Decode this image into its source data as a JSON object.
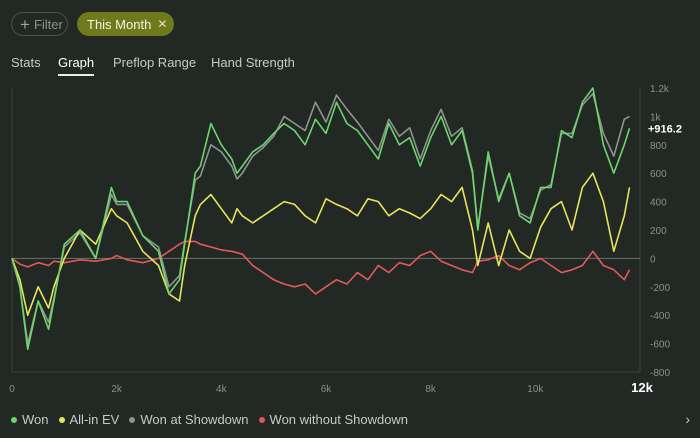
{
  "filters": {
    "filter_label": "Filter",
    "this_month_label": "This Month",
    "plus_icon": "plus-icon",
    "close_icon": "close-icon"
  },
  "tabs": [
    {
      "label": "Stats",
      "active": false
    },
    {
      "label": "Graph",
      "active": true
    },
    {
      "label": "Preflop Range",
      "active": false
    },
    {
      "label": "Hand Strength",
      "active": false
    }
  ],
  "chart_data": {
    "type": "line",
    "x_ticks": [
      "0",
      "2k",
      "4k",
      "6k",
      "8k",
      "10k",
      "12k"
    ],
    "y_ticks": [
      "-800",
      "-600",
      "-400",
      "-200",
      "0",
      "200",
      "400",
      "600",
      "800",
      "1k",
      "1.2k"
    ],
    "xlim": [
      0,
      12000
    ],
    "ylim": [
      -800,
      1200
    ],
    "end_label": "+916.2",
    "series": [
      {
        "name": "Won",
        "color": "#6bd66b",
        "x": [
          0,
          150,
          300,
          500,
          700,
          800,
          1000,
          1300,
          1600,
          1900,
          2000,
          2200,
          2500,
          2800,
          3000,
          3200,
          3300,
          3500,
          3600,
          3800,
          4000,
          4200,
          4300,
          4400,
          4600,
          4800,
          5000,
          5200,
          5400,
          5600,
          5800,
          6000,
          6200,
          6400,
          6600,
          6800,
          7000,
          7200,
          7400,
          7600,
          7800,
          8000,
          8200,
          8400,
          8600,
          8800,
          8900,
          9100,
          9300,
          9500,
          9700,
          9900,
          10100,
          10300,
          10500,
          10700,
          10900,
          11100,
          11300,
          11500,
          11700,
          11800
        ],
        "y": [
          0,
          -200,
          -640,
          -300,
          -500,
          -300,
          100,
          200,
          0,
          500,
          400,
          400,
          160,
          50,
          -250,
          -150,
          100,
          600,
          650,
          950,
          800,
          700,
          600,
          650,
          750,
          800,
          880,
          950,
          900,
          800,
          980,
          880,
          1100,
          950,
          900,
          800,
          700,
          950,
          800,
          850,
          650,
          850,
          1000,
          800,
          900,
          600,
          200,
          750,
          400,
          600,
          300,
          250,
          500,
          500,
          900,
          850,
          1100,
          1200,
          800,
          600,
          800,
          916
        ]
      },
      {
        "name": "All-in EV",
        "color": "#e8e35c",
        "x": [
          0,
          150,
          300,
          500,
          700,
          800,
          1000,
          1300,
          1600,
          1900,
          2000,
          2200,
          2500,
          2800,
          3000,
          3200,
          3300,
          3500,
          3600,
          3800,
          4000,
          4200,
          4300,
          4400,
          4600,
          4800,
          5000,
          5200,
          5400,
          5600,
          5800,
          6000,
          6200,
          6400,
          6600,
          6800,
          7000,
          7200,
          7400,
          7600,
          7800,
          8000,
          8200,
          8400,
          8600,
          8800,
          8900,
          9100,
          9300,
          9500,
          9700,
          9900,
          10100,
          10300,
          10500,
          10700,
          10900,
          11100,
          11300,
          11500,
          11700,
          11800
        ],
        "y": [
          0,
          -150,
          -400,
          -200,
          -350,
          -200,
          0,
          200,
          100,
          350,
          300,
          250,
          50,
          -50,
          -250,
          -300,
          -50,
          300,
          380,
          450,
          350,
          250,
          350,
          300,
          250,
          300,
          350,
          400,
          380,
          300,
          250,
          420,
          380,
          350,
          300,
          420,
          400,
          300,
          350,
          320,
          280,
          350,
          450,
          400,
          500,
          200,
          -50,
          250,
          -50,
          200,
          50,
          0,
          220,
          350,
          400,
          200,
          500,
          600,
          400,
          50,
          300,
          500
        ]
      },
      {
        "name": "Won at Showdown",
        "color": "#8e948e",
        "x": [
          0,
          150,
          300,
          500,
          700,
          800,
          1000,
          1300,
          1600,
          1900,
          2000,
          2200,
          2500,
          2800,
          3000,
          3200,
          3300,
          3500,
          3600,
          3800,
          4000,
          4200,
          4300,
          4400,
          4600,
          4800,
          5000,
          5200,
          5400,
          5600,
          5800,
          6000,
          6200,
          6400,
          6600,
          6800,
          7000,
          7200,
          7400,
          7600,
          7800,
          8000,
          8200,
          8400,
          8600,
          8800,
          8900,
          9100,
          9300,
          9500,
          9700,
          9900,
          10100,
          10300,
          10500,
          10700,
          10900,
          11100,
          11300,
          11500,
          11700,
          11800
        ],
        "y": [
          0,
          -200,
          -600,
          -300,
          -450,
          -280,
          80,
          180,
          0,
          450,
          380,
          380,
          160,
          80,
          -200,
          -120,
          120,
          550,
          580,
          800,
          750,
          650,
          560,
          600,
          720,
          780,
          860,
          1000,
          950,
          900,
          1100,
          960,
          1150,
          1050,
          960,
          860,
          760,
          980,
          860,
          920,
          700,
          900,
          1050,
          860,
          920,
          620,
          220,
          720,
          420,
          600,
          320,
          280,
          480,
          520,
          880,
          880,
          1080,
          1160,
          880,
          720,
          980,
          1000
        ]
      },
      {
        "name": "Won without Showdown",
        "color": "#e05a5a",
        "x": [
          0,
          150,
          300,
          500,
          700,
          800,
          1000,
          1300,
          1600,
          1900,
          2000,
          2200,
          2500,
          2800,
          3000,
          3200,
          3300,
          3500,
          3600,
          3800,
          4000,
          4200,
          4300,
          4400,
          4600,
          4800,
          5000,
          5200,
          5400,
          5600,
          5800,
          6000,
          6200,
          6400,
          6600,
          6800,
          7000,
          7200,
          7400,
          7600,
          7800,
          8000,
          8200,
          8400,
          8600,
          8800,
          8900,
          9100,
          9300,
          9500,
          9700,
          9900,
          10100,
          10300,
          10500,
          10700,
          10900,
          11100,
          11300,
          11500,
          11700,
          11800
        ],
        "y": [
          0,
          -40,
          -60,
          -30,
          -50,
          -20,
          -30,
          -10,
          -20,
          0,
          20,
          -10,
          -30,
          0,
          50,
          100,
          120,
          120,
          100,
          80,
          60,
          50,
          40,
          30,
          -50,
          -100,
          -150,
          -180,
          -200,
          -180,
          -250,
          -200,
          -150,
          -180,
          -100,
          -150,
          -50,
          -100,
          -30,
          -50,
          20,
          50,
          -20,
          -50,
          -80,
          -100,
          -20,
          -10,
          20,
          -50,
          -80,
          -30,
          0,
          -50,
          -100,
          -80,
          -50,
          50,
          -50,
          -80,
          -150,
          -80
        ]
      }
    ]
  },
  "legend": [
    {
      "label": "Won",
      "color": "#6bd66b"
    },
    {
      "label": "All-in EV",
      "color": "#e8e35c"
    },
    {
      "label": "Won at Showdown",
      "color": "#8e948e"
    },
    {
      "label": "Won without Showdown",
      "color": "#e05a5a"
    }
  ],
  "footer": {
    "arrow_icon": "chevron-right-icon",
    "arrow_glyph": "›"
  }
}
